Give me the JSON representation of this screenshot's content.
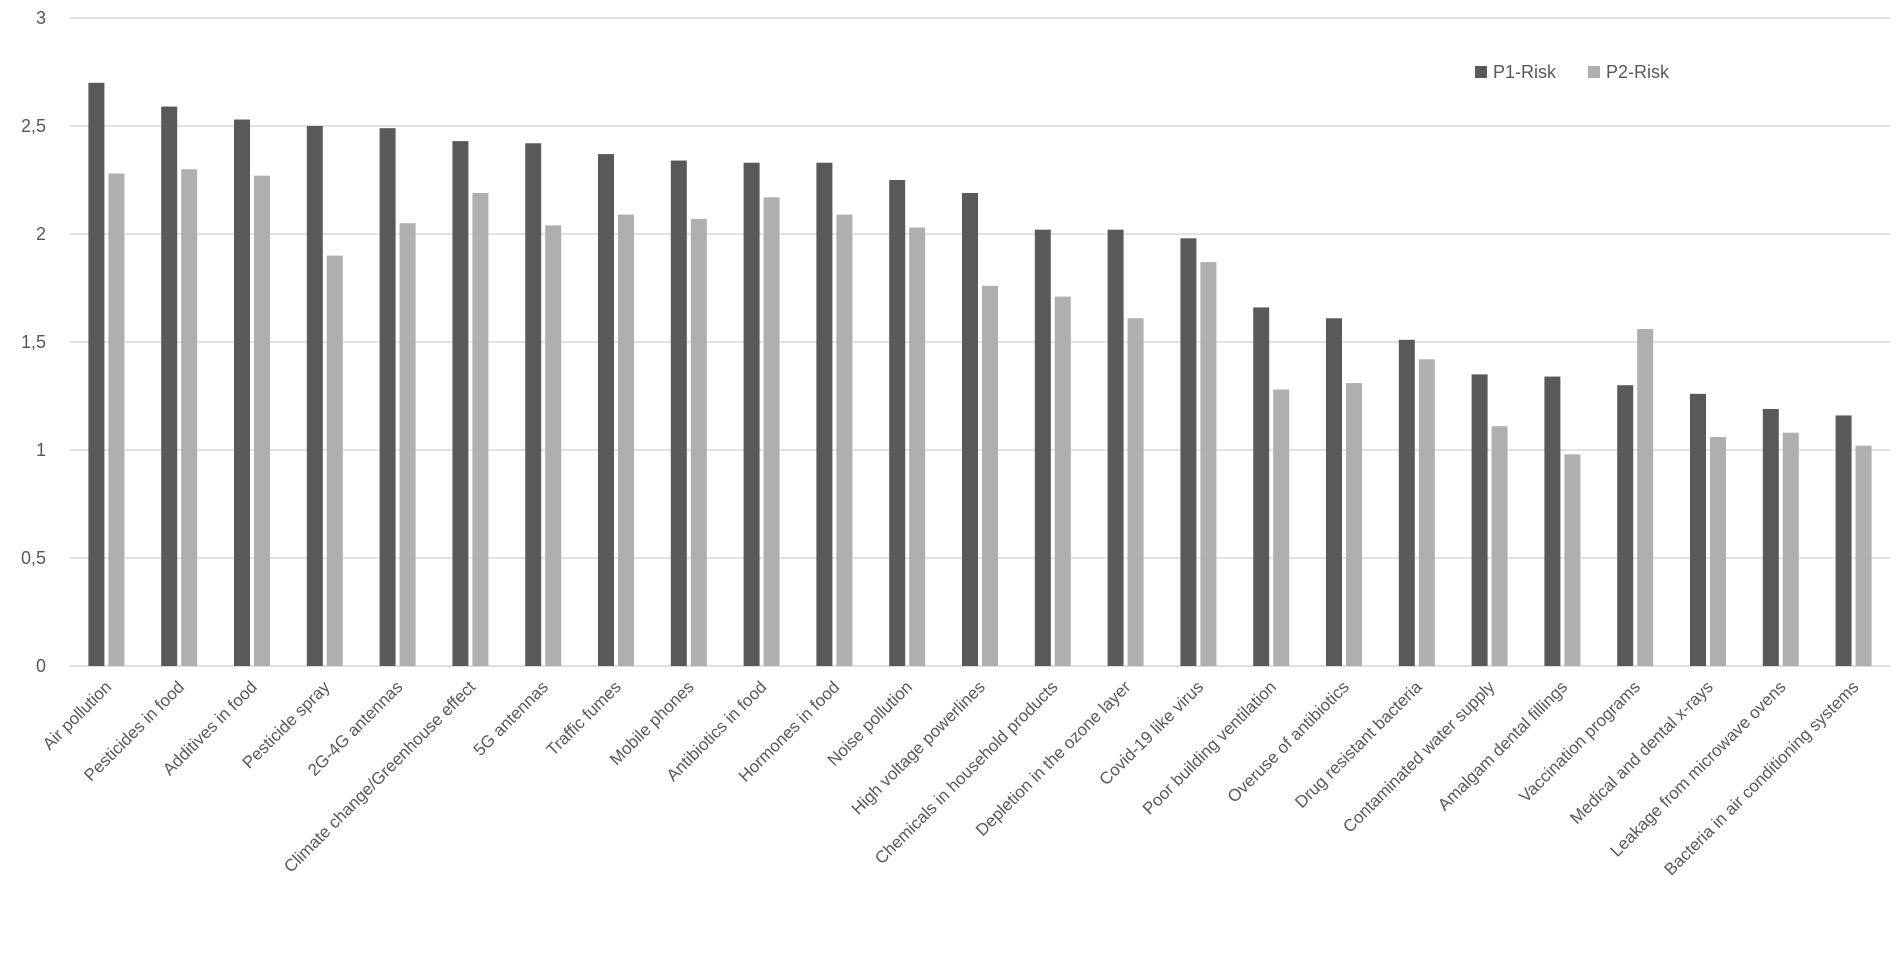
{
  "chart_data": {
    "type": "bar",
    "title": "",
    "xlabel": "",
    "ylabel": "",
    "ylim": [
      0,
      3
    ],
    "yticks": [
      0,
      0.5,
      1,
      1.5,
      2,
      2.5,
      3
    ],
    "ytick_labels": [
      "0",
      "0,5",
      "1",
      "1,5",
      "2",
      "2,5",
      "3"
    ],
    "grid": true,
    "legend_position": "top-right",
    "categories": [
      "Air pollution",
      "Pesticides in food",
      "Additives in food",
      "Pesticide spray",
      "2G-4G antennas",
      "Climate change/Greenhouse effect",
      "5G antennas",
      "Traffic fumes",
      "Mobile phones",
      "Antibiotics in food",
      "Hormones in food",
      "Noise pollution",
      "High voltage powerlines",
      "Chemicals in household products",
      "Depletion in the ozone layer",
      "Covid-19 like virus",
      "Poor building ventilation",
      "Overuse of antibiotics",
      "Drug resistant bacteria",
      "Contaminated water supply",
      "Amalgam dental fillings",
      "Vaccination programs",
      "Medical and dental x-rays",
      "Leakage from microwave ovens",
      "Bacteria in air conditioning systems"
    ],
    "series": [
      {
        "name": "P1-Risk",
        "color": "#595959",
        "values": [
          2.7,
          2.59,
          2.53,
          2.5,
          2.49,
          2.43,
          2.42,
          2.37,
          2.34,
          2.33,
          2.33,
          2.25,
          2.19,
          2.02,
          2.02,
          1.98,
          1.66,
          1.61,
          1.51,
          1.35,
          1.34,
          1.3,
          1.26,
          1.19,
          1.16
        ]
      },
      {
        "name": "P2-Risk",
        "color": "#afafaf",
        "values": [
          2.28,
          2.3,
          2.27,
          1.9,
          2.05,
          2.19,
          2.04,
          2.09,
          2.07,
          2.17,
          2.09,
          2.03,
          1.76,
          1.71,
          1.61,
          1.87,
          1.28,
          1.31,
          1.42,
          1.11,
          0.98,
          1.56,
          1.06,
          1.08,
          1.02
        ]
      }
    ],
    "gridline_color": "#d9d9d9",
    "axis_color": "#d9d9d9"
  }
}
